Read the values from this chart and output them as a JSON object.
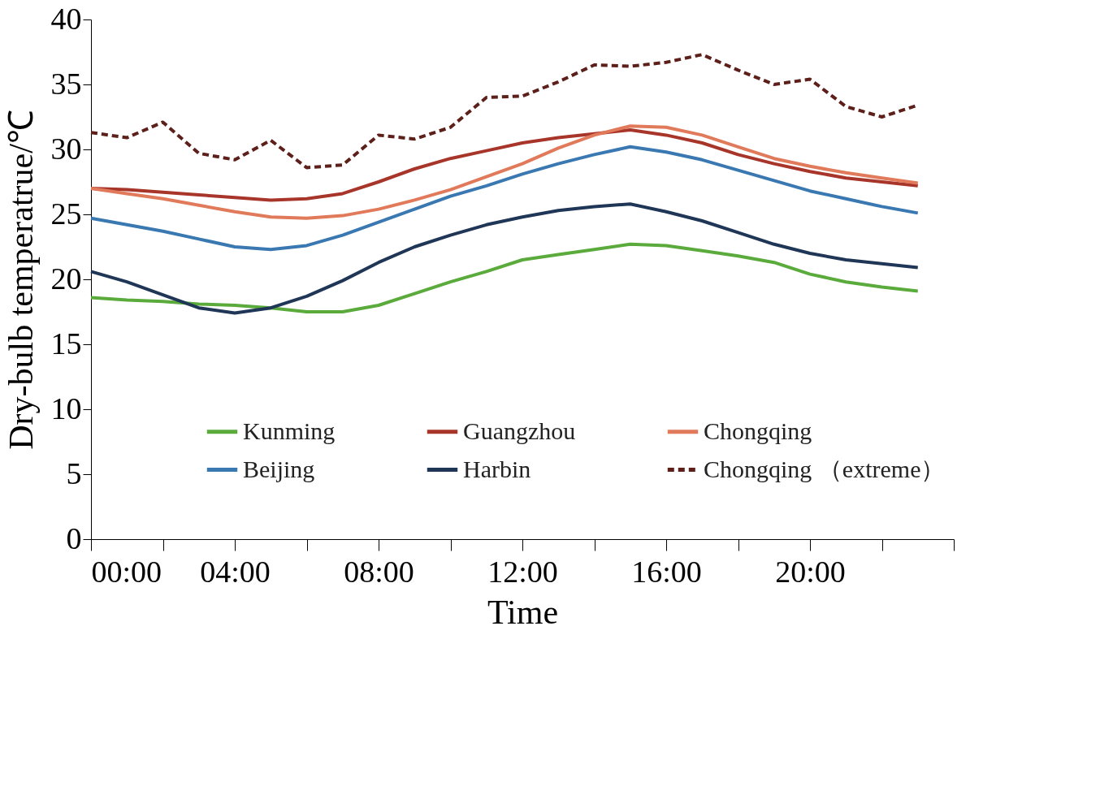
{
  "chart_data": {
    "type": "line",
    "xlabel": "Time",
    "ylabel": "Dry-bulb temperatrue/℃",
    "x": [
      0,
      1,
      2,
      3,
      4,
      5,
      6,
      7,
      8,
      9,
      10,
      11,
      12,
      13,
      14,
      15,
      16,
      17,
      18,
      19,
      20,
      21,
      22,
      23
    ],
    "xlim": [
      0,
      24
    ],
    "ylim": [
      0,
      40
    ],
    "xticks": [
      {
        "value": 0,
        "label": "00:00"
      },
      {
        "value": 2,
        "label": null
      },
      {
        "value": 4,
        "label": "04:00"
      },
      {
        "value": 6,
        "label": null
      },
      {
        "value": 8,
        "label": "08:00"
      },
      {
        "value": 10,
        "label": null
      },
      {
        "value": 12,
        "label": "12:00"
      },
      {
        "value": 14,
        "label": null
      },
      {
        "value": 16,
        "label": "16:00"
      },
      {
        "value": 18,
        "label": null
      },
      {
        "value": 20,
        "label": "20:00"
      },
      {
        "value": 22,
        "label": null
      },
      {
        "value": 24,
        "label": null
      }
    ],
    "yticks": [
      0,
      5,
      10,
      15,
      20,
      25,
      30,
      35,
      40
    ],
    "grid": false,
    "legend": "bottom",
    "marker": "none",
    "series": [
      {
        "name": "Kunming",
        "color": "#5aab3c",
        "line_style": "solid",
        "values": [
          18.6,
          18.4,
          18.3,
          18.1,
          18.0,
          17.8,
          17.5,
          17.5,
          18.0,
          18.9,
          19.8,
          20.6,
          21.5,
          21.9,
          22.3,
          22.7,
          22.6,
          22.2,
          21.8,
          21.3,
          20.4,
          19.8,
          19.4,
          19.1
        ]
      },
      {
        "name": "Guangzhou",
        "color": "#a8352a",
        "line_style": "solid",
        "values": [
          27.0,
          26.9,
          26.7,
          26.5,
          26.3,
          26.1,
          26.2,
          26.6,
          27.5,
          28.5,
          29.3,
          29.9,
          30.5,
          30.9,
          31.2,
          31.5,
          31.1,
          30.5,
          29.6,
          28.9,
          28.3,
          27.8,
          27.5,
          27.2
        ]
      },
      {
        "name": "Chongqing",
        "color": "#e07a5a",
        "line_style": "solid",
        "values": [
          27.0,
          26.6,
          26.2,
          25.7,
          25.2,
          24.8,
          24.7,
          24.9,
          25.4,
          26.1,
          26.9,
          27.9,
          28.9,
          30.1,
          31.1,
          31.8,
          31.7,
          31.1,
          30.2,
          29.3,
          28.7,
          28.2,
          27.8,
          27.4
        ]
      },
      {
        "name": "Beijing",
        "color": "#3a78b2",
        "line_style": "solid",
        "values": [
          24.7,
          24.2,
          23.7,
          23.1,
          22.5,
          22.3,
          22.6,
          23.4,
          24.4,
          25.4,
          26.4,
          27.2,
          28.1,
          28.9,
          29.6,
          30.2,
          29.8,
          29.2,
          28.4,
          27.6,
          26.8,
          26.2,
          25.6,
          25.1
        ]
      },
      {
        "name": "Harbin",
        "color": "#1f3657",
        "line_style": "solid",
        "values": [
          20.6,
          19.8,
          18.8,
          17.8,
          17.4,
          17.8,
          18.7,
          19.9,
          21.3,
          22.5,
          23.4,
          24.2,
          24.8,
          25.3,
          25.6,
          25.8,
          25.2,
          24.5,
          23.6,
          22.7,
          22.0,
          21.5,
          21.2,
          20.9
        ]
      },
      {
        "name": "Chongqing （extreme）",
        "color": "#5c1f1a",
        "line_style": "dashed",
        "values": [
          31.3,
          30.9,
          32.1,
          29.7,
          29.2,
          30.7,
          28.6,
          28.8,
          31.1,
          30.8,
          31.7,
          34.0,
          34.1,
          35.2,
          36.5,
          36.4,
          36.7,
          37.3,
          36.1,
          35.0,
          35.4,
          33.3,
          32.5,
          33.4
        ]
      }
    ]
  }
}
